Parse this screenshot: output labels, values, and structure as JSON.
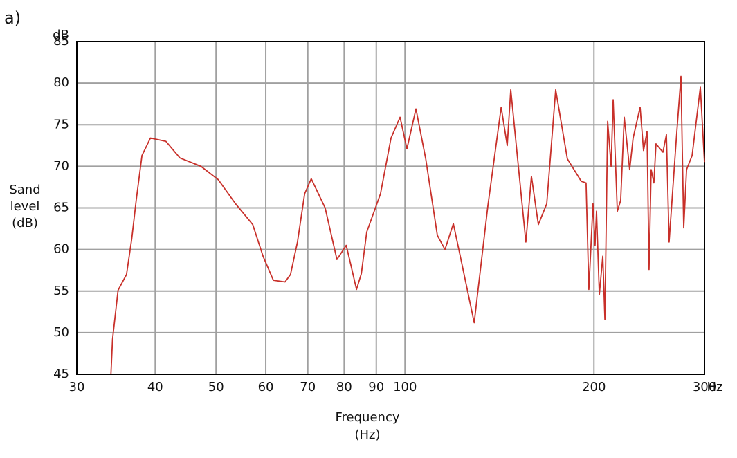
{
  "panel_label": "a)",
  "chart_data": {
    "type": "line",
    "ylabel": [
      "Sand",
      "level",
      "(dB)"
    ],
    "xlabel": [
      "Frequency",
      "(Hz)"
    ],
    "yunit": "dB",
    "xunit": "Hz",
    "xscale": "log",
    "grid": true,
    "xlim": [
      30,
      300
    ],
    "ylim": [
      45,
      85
    ],
    "xticks": [
      30,
      40,
      50,
      60,
      70,
      80,
      90,
      100,
      200,
      300
    ],
    "yticks": [
      45,
      50,
      55,
      60,
      65,
      70,
      75,
      80,
      85
    ],
    "x": [
      34.0,
      34.2,
      34.9,
      36.0,
      36.7,
      37.3,
      38.1,
      39.3,
      41.6,
      43.8,
      47.3,
      50.4,
      53.7,
      57.2,
      59.4,
      61.7,
      64.4,
      65.7,
      67.4,
      69.2,
      70.9,
      74.6,
      77.9,
      80.6,
      81.6,
      83.7,
      85.2,
      86.9,
      91.4,
      95.0,
      98.2,
      100.7,
      104.1,
      107.9,
      112.6,
      115.8,
      119.4,
      123.1,
      128.9,
      135.5,
      142.3,
      145.5,
      147.4,
      155.8,
      159.0,
      163.1,
      168.2,
      173.8,
      181.4,
      190.9,
      194.3,
      196.3,
      199.3,
      200.8,
      201.9,
      204.0,
      206.6,
      208.2,
      210.3,
      213.0,
      214.6,
      217.9,
      220.6,
      223.5,
      228.0,
      230.9,
      236.9,
      239.9,
      243.0,
      244.8,
      246.7,
      249.2,
      251.1,
      257.6,
      260.9,
      263.5,
      270.3,
      275.2,
      278.0,
      280.9,
      286.7,
      295.5,
      300
    ],
    "series": [
      {
        "color": "#c8302a",
        "values": [
          45,
          49.2,
          55.1,
          57,
          61.3,
          65.9,
          71.3,
          73.4,
          73,
          71,
          70,
          68.4,
          65.5,
          63,
          59.2,
          56.3,
          56.1,
          57,
          60.9,
          66.7,
          68.5,
          65,
          58.8,
          60.5,
          58.8,
          55.2,
          57.1,
          62.1,
          66.7,
          73.4,
          75.9,
          72.1,
          76.9,
          70.9,
          61.7,
          60,
          63.1,
          58.4,
          51.2,
          65.2,
          77.1,
          72.5,
          79.2,
          60.9,
          68.8,
          63,
          65.5,
          79.2,
          70.9,
          68.2,
          68,
          55.2,
          65.5,
          60.5,
          64.6,
          54.6,
          59.2,
          51.6,
          75.4,
          70,
          78,
          64.6,
          65.9,
          75.9,
          69.6,
          73.4,
          77.1,
          71.9,
          74.2,
          57.6,
          69.6,
          68,
          72.7,
          71.7,
          73.8,
          60.9,
          72.9,
          80.8,
          62.6,
          69.6,
          71.3,
          79.5,
          70.5
        ]
      }
    ]
  }
}
